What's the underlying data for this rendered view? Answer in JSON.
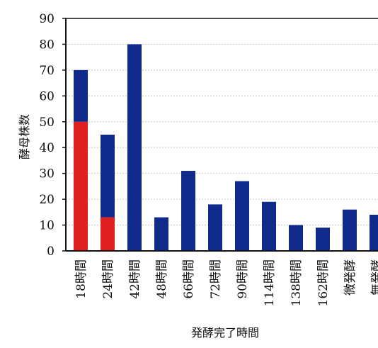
{
  "chart_data": {
    "type": "bar",
    "stacked": true,
    "title": "",
    "xlabel": "発酵完了時間",
    "ylabel": "酵母株数",
    "ylim": [
      0,
      90
    ],
    "yticks": [
      0,
      10,
      20,
      30,
      40,
      50,
      60,
      70,
      80,
      90
    ],
    "grid": true,
    "legend": "none",
    "categories": [
      "18時間",
      "24時間",
      "42時間",
      "48時間",
      "66時間",
      "72時間",
      "90時間",
      "114時間",
      "138時間",
      "162時間",
      "微発酵",
      "無発酵"
    ],
    "series": [
      {
        "color": "#e02020",
        "values": [
          50,
          13,
          0,
          0,
          0,
          0,
          0,
          0,
          0,
          0,
          0,
          0
        ]
      },
      {
        "color": "#102a8c",
        "values": [
          20,
          32,
          80,
          13,
          31,
          18,
          27,
          19,
          10,
          9,
          16,
          14
        ]
      }
    ],
    "colors": {
      "grid": "#c8c8c8",
      "axis": "#111111"
    }
  }
}
